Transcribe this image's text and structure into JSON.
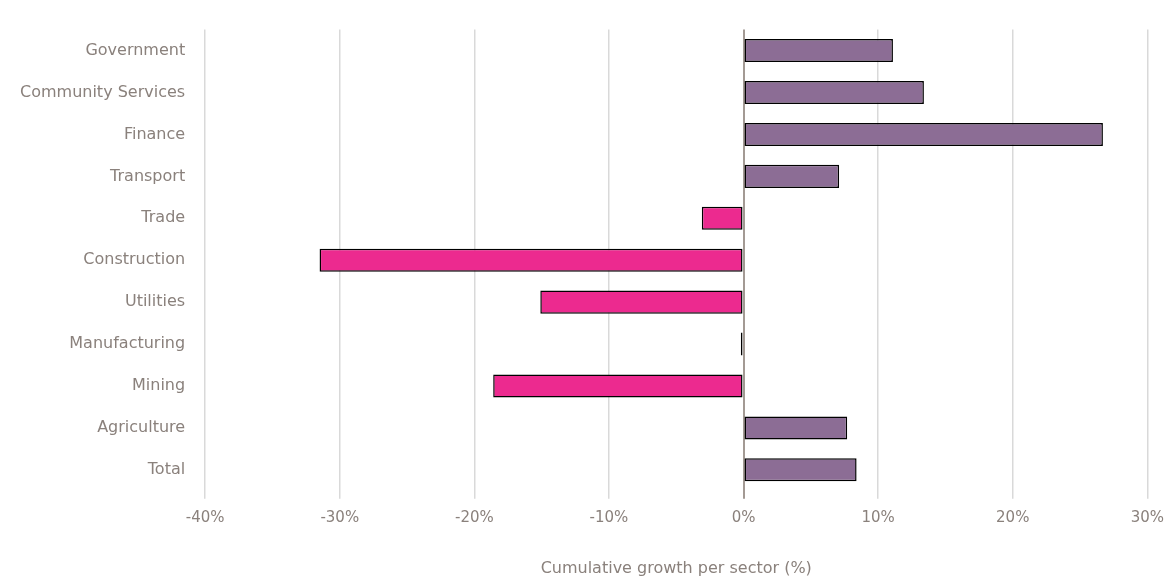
{
  "chart_data": {
    "type": "bar",
    "orientation": "horizontal",
    "categories": [
      "Government",
      "Community Services",
      "Finance",
      "Transport",
      "Trade",
      "Construction",
      "Utilities",
      "Manufacturing",
      "Mining",
      "Agriculture",
      "Total"
    ],
    "values": [
      11.1,
      13.4,
      26.7,
      7.1,
      -3.1,
      -31.5,
      -15.1,
      -0.2,
      -18.6,
      7.7,
      8.4
    ],
    "colors": [
      "#8c6d95",
      "#8c6d95",
      "#8c6d95",
      "#8c6d95",
      "#ec2a8f",
      "#ec2a8f",
      "#ec2a8f",
      "#000000",
      "#ec2a8f",
      "#8c6d95",
      "#8c6d95"
    ],
    "xlabel": "Cumulative growth per sector (%)",
    "xlim": [
      -40,
      30
    ],
    "xticks": [
      {
        "value": -40,
        "label": "-40%"
      },
      {
        "value": -30,
        "label": "-30%"
      },
      {
        "value": -20,
        "label": "-20%"
      },
      {
        "value": -10,
        "label": "-10%"
      },
      {
        "value": 0,
        "label": "0%"
      },
      {
        "value": 10,
        "label": "10%"
      },
      {
        "value": 20,
        "label": "20%"
      },
      {
        "value": 30,
        "label": "30%"
      }
    ],
    "grid": "x",
    "legend": false
  }
}
